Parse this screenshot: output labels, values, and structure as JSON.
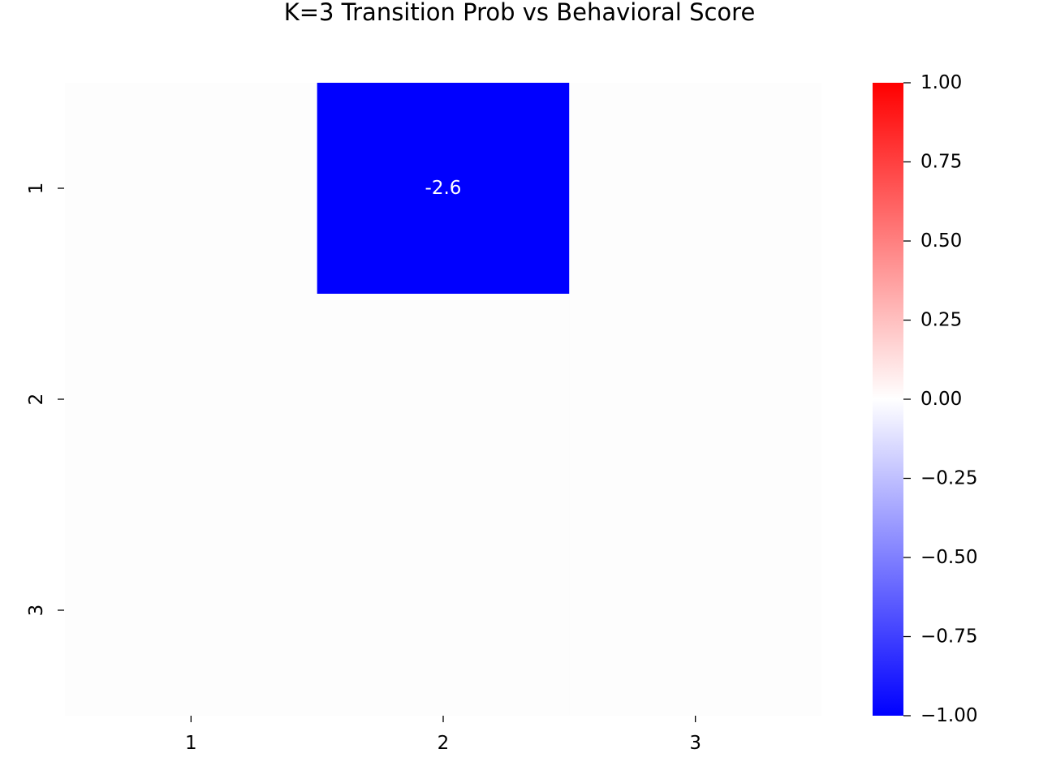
{
  "chart_data": {
    "type": "heatmap",
    "title": "K=3 Transition Prob vs Behavioral Score",
    "xlabel": "",
    "ylabel": "",
    "x_categories": [
      "1",
      "2",
      "3"
    ],
    "y_categories": [
      "1",
      "2",
      "3"
    ],
    "values": [
      [
        0,
        -2.6,
        0
      ],
      [
        0,
        0,
        0
      ],
      [
        0,
        0,
        0
      ]
    ],
    "annotations": [
      {
        "row": 0,
        "col": 1,
        "text": "-2.6"
      }
    ],
    "colorbar": {
      "range": [
        -1.0,
        1.0
      ],
      "ticks": [
        "1.00",
        "0.75",
        "0.50",
        "0.25",
        "0.00",
        "−0.25",
        "−0.50",
        "−0.75",
        "−1.00"
      ],
      "tick_values": [
        1.0,
        0.75,
        0.5,
        0.25,
        0.0,
        -0.25,
        -0.5,
        -0.75,
        -1.0
      ],
      "colors": {
        "low": "#0000ff",
        "mid": "#ffffff",
        "high": "#ff0000"
      },
      "position": "right"
    },
    "empty_cell_color": "#fdfdfd",
    "grid": false,
    "legend": "none"
  }
}
